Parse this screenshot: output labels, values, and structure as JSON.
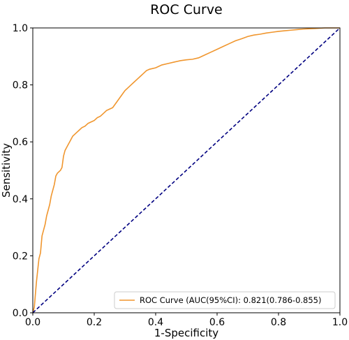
{
  "chart_data": {
    "type": "line",
    "title": "ROC Curve",
    "xlabel": "1-Specificity",
    "ylabel": "Sensitivity",
    "xlim": [
      0.0,
      1.0
    ],
    "ylim": [
      0.0,
      1.0
    ],
    "x_ticks": [
      "0.0",
      "0.2",
      "0.4",
      "0.6",
      "0.8",
      "1.0"
    ],
    "y_ticks": [
      "0.0",
      "0.2",
      "0.4",
      "0.6",
      "0.8",
      "1.0"
    ],
    "grid": false,
    "legend_position": "bottom-right",
    "series": [
      {
        "name": "ROC Curve (AUC(95%CI): 0.821(0.786-0.855)",
        "color": "#f0962e",
        "style": "solid",
        "points": [
          [
            0.0,
            0.0
          ],
          [
            0.005,
            0.02
          ],
          [
            0.008,
            0.06
          ],
          [
            0.012,
            0.11
          ],
          [
            0.016,
            0.15
          ],
          [
            0.02,
            0.19
          ],
          [
            0.025,
            0.21
          ],
          [
            0.03,
            0.27
          ],
          [
            0.035,
            0.29
          ],
          [
            0.04,
            0.31
          ],
          [
            0.045,
            0.34
          ],
          [
            0.05,
            0.36
          ],
          [
            0.055,
            0.38
          ],
          [
            0.06,
            0.41
          ],
          [
            0.065,
            0.43
          ],
          [
            0.07,
            0.45
          ],
          [
            0.075,
            0.48
          ],
          [
            0.08,
            0.49
          ],
          [
            0.09,
            0.5
          ],
          [
            0.095,
            0.51
          ],
          [
            0.1,
            0.55
          ],
          [
            0.105,
            0.57
          ],
          [
            0.11,
            0.58
          ],
          [
            0.115,
            0.59
          ],
          [
            0.12,
            0.6
          ],
          [
            0.13,
            0.62
          ],
          [
            0.14,
            0.63
          ],
          [
            0.15,
            0.64
          ],
          [
            0.16,
            0.65
          ],
          [
            0.17,
            0.655
          ],
          [
            0.18,
            0.665
          ],
          [
            0.19,
            0.67
          ],
          [
            0.2,
            0.675
          ],
          [
            0.21,
            0.685
          ],
          [
            0.22,
            0.69
          ],
          [
            0.23,
            0.7
          ],
          [
            0.24,
            0.71
          ],
          [
            0.25,
            0.715
          ],
          [
            0.26,
            0.72
          ],
          [
            0.27,
            0.735
          ],
          [
            0.28,
            0.75
          ],
          [
            0.29,
            0.765
          ],
          [
            0.3,
            0.78
          ],
          [
            0.31,
            0.79
          ],
          [
            0.32,
            0.8
          ],
          [
            0.33,
            0.81
          ],
          [
            0.34,
            0.82
          ],
          [
            0.35,
            0.83
          ],
          [
            0.36,
            0.84
          ],
          [
            0.37,
            0.85
          ],
          [
            0.38,
            0.855
          ],
          [
            0.4,
            0.86
          ],
          [
            0.42,
            0.87
          ],
          [
            0.44,
            0.875
          ],
          [
            0.46,
            0.88
          ],
          [
            0.48,
            0.885
          ],
          [
            0.5,
            0.888
          ],
          [
            0.52,
            0.89
          ],
          [
            0.54,
            0.895
          ],
          [
            0.56,
            0.905
          ],
          [
            0.58,
            0.915
          ],
          [
            0.6,
            0.925
          ],
          [
            0.62,
            0.935
          ],
          [
            0.64,
            0.945
          ],
          [
            0.66,
            0.955
          ],
          [
            0.68,
            0.962
          ],
          [
            0.7,
            0.97
          ],
          [
            0.72,
            0.975
          ],
          [
            0.74,
            0.978
          ],
          [
            0.76,
            0.982
          ],
          [
            0.78,
            0.985
          ],
          [
            0.8,
            0.988
          ],
          [
            0.82,
            0.99
          ],
          [
            0.84,
            0.992
          ],
          [
            0.86,
            0.994
          ],
          [
            0.88,
            0.996
          ],
          [
            0.9,
            0.997
          ],
          [
            0.92,
            0.998
          ],
          [
            0.95,
            1.0
          ],
          [
            1.0,
            1.0
          ]
        ]
      },
      {
        "name": "",
        "color": "#000080",
        "style": "dashed",
        "points": [
          [
            0.0,
            0.0
          ],
          [
            1.0,
            1.0
          ]
        ]
      }
    ],
    "legend": {
      "label": "ROC Curve (AUC(95%CI): 0.821(0.786-0.855)"
    }
  }
}
